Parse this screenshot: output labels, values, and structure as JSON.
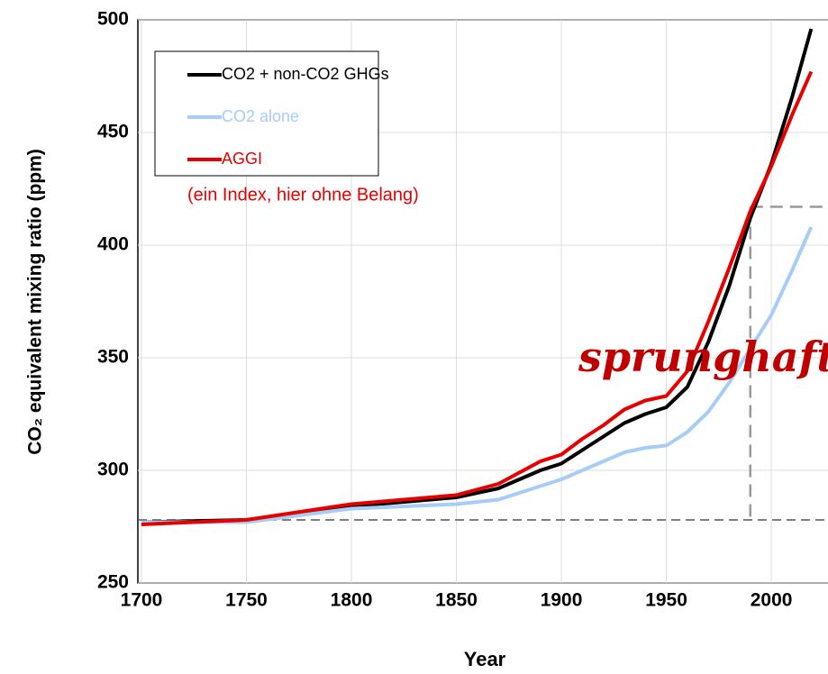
{
  "chart_data": {
    "type": "line",
    "x_label": "Year",
    "y_label": "CO₂ equivalent mixing ratio (ppm)",
    "x": [
      1700,
      1750,
      1800,
      1850,
      1870,
      1890,
      1900,
      1910,
      1920,
      1930,
      1940,
      1950,
      1960,
      1970,
      1980,
      1990,
      2000,
      2010,
      2019
    ],
    "series": [
      {
        "name": "CO2 + non-CO2 GHGs",
        "color": "#000000",
        "values": [
          277,
          278,
          284,
          288,
          292,
          300,
          303,
          309,
          315,
          321,
          325,
          328,
          337,
          357,
          382,
          412,
          436,
          466,
          496
        ]
      },
      {
        "name": "CO2 alone",
        "color": "#a6cdf5",
        "values": [
          277,
          277,
          283,
          285,
          287,
          293,
          296,
          300,
          304,
          308,
          310,
          311,
          317,
          326,
          339,
          354,
          369,
          389,
          408
        ]
      },
      {
        "name": "AGGI",
        "color": "#e60000",
        "values": [
          276,
          278,
          285,
          289,
          294,
          304,
          307,
          314,
          320,
          327,
          331,
          333,
          344,
          366,
          390,
          415,
          435,
          458,
          477
        ]
      }
    ],
    "legend_note": "(ein Index, hier ohne Belang)",
    "annotation": "sprunghaft",
    "guides": {
      "y": [
        278,
        417
      ],
      "x": 1990
    },
    "xlim": [
      1700,
      2027
    ],
    "ylim": [
      250,
      500
    ],
    "xticks": [
      1700,
      1750,
      1800,
      1850,
      1900,
      1950,
      2000
    ],
    "yticks": [
      250,
      300,
      350,
      400,
      450,
      500
    ],
    "grid": true
  }
}
